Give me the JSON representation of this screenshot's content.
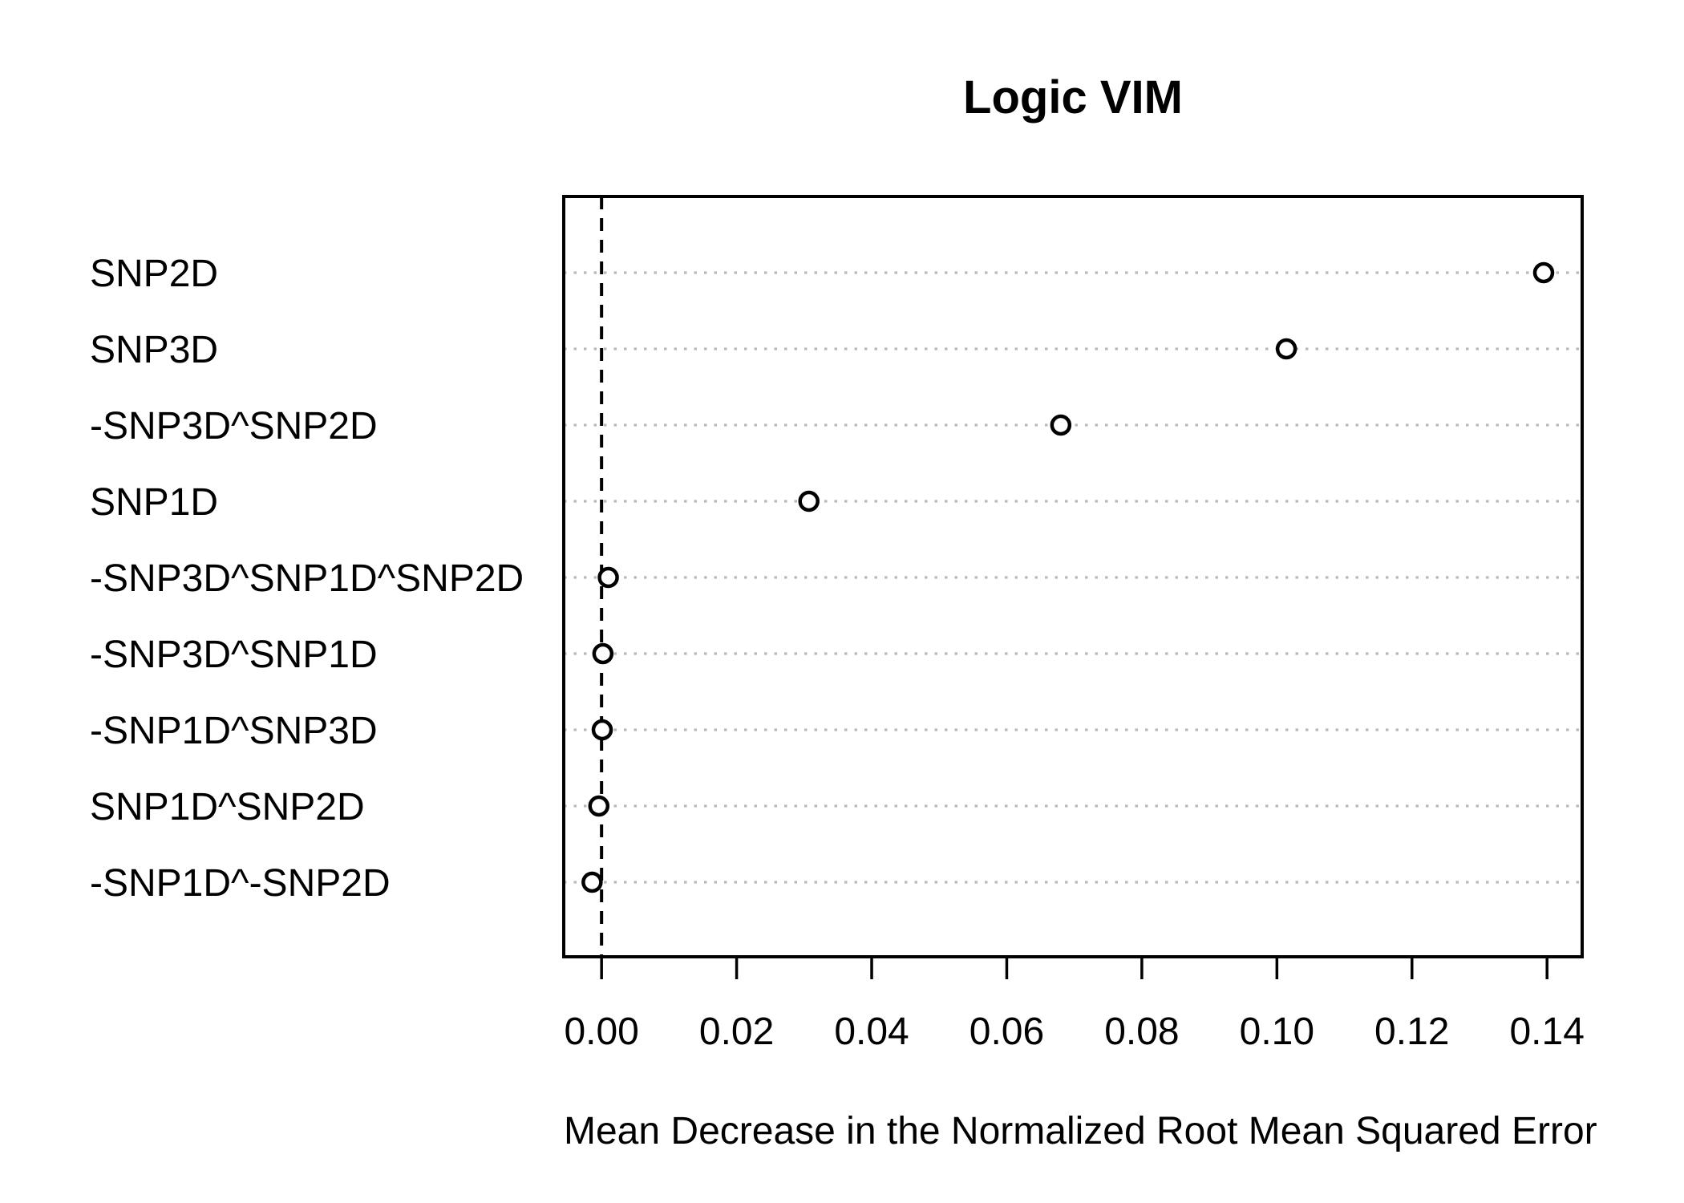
{
  "page": {
    "background": "#ffffff"
  },
  "chart_data": {
    "type": "scatter",
    "variant": "dotchart",
    "title": "Logic VIM",
    "xlabel": "Mean Decrease in the Normalized Root Mean Squared Error",
    "ylabel": "",
    "categories_top_to_bottom": [
      "SNP2D",
      "SNP3D",
      "-SNP3D^SNP2D",
      "SNP1D",
      "-SNP3D^SNP1D^SNP2D",
      "-SNP3D^SNP1D",
      "-SNP1D^SNP3D",
      "SNP1D^SNP2D",
      "-SNP1D^-SNP2D"
    ],
    "values_top_to_bottom": [
      0.1395,
      0.1014,
      0.068,
      0.0307,
      0.001,
      0.0002,
      0.0001,
      -0.0004,
      -0.0014
    ],
    "xlim": [
      -0.0056,
      0.1452
    ],
    "xticks": {
      "values": [
        0.0,
        0.02,
        0.04,
        0.06,
        0.08,
        0.1,
        0.12,
        0.14
      ],
      "labels": [
        "0.00",
        "0.02",
        "0.04",
        "0.06",
        "0.08",
        "0.10",
        "0.12",
        "0.14"
      ]
    },
    "reference_line_x": 0,
    "reference_line_style": "dashed-black-vertical",
    "grid": "dotted horizontal line per category, full plot width",
    "legend": "none",
    "marker": "open-circle",
    "colors": {
      "background": "#ffffff",
      "axis": "#000000",
      "text": "#000000",
      "grid": "#b9b9b9",
      "point_stroke": "#000000",
      "point_fill": "#ffffff",
      "reference_line": "#000000"
    }
  }
}
